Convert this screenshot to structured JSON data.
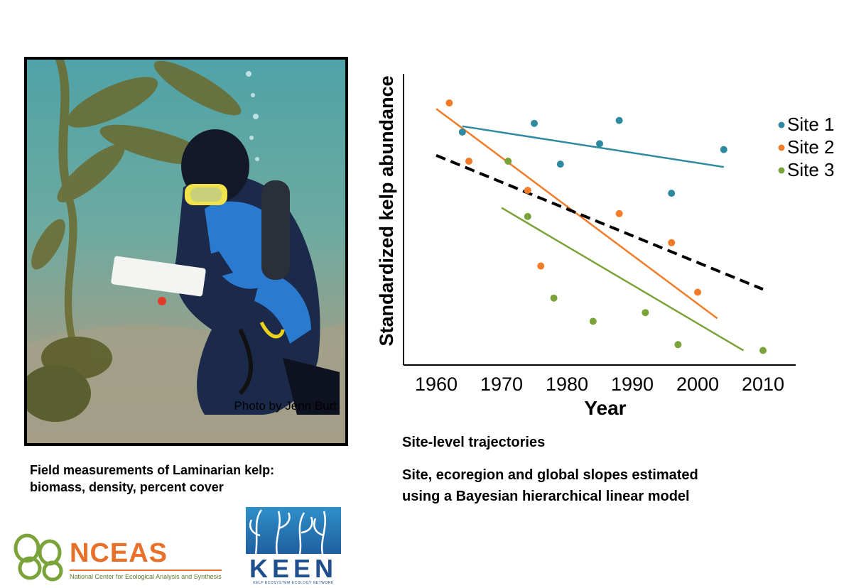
{
  "photo": {
    "credit": "Photo by Jenn Burt",
    "caption_line1": "Field measurements of Laminarian kelp:",
    "caption_line2": "biomass, density, percent cover"
  },
  "chart_captions": {
    "line1": "Site-level trajectories",
    "line2a": "Site, ecoregion and global slopes estimated",
    "line2b": "using a Bayesian hierarchical linear model"
  },
  "logos": {
    "nceas_name": "NCEAS",
    "nceas_sub": "National Center for Ecological Analysis and Synthesis",
    "keen_name": "KEEN",
    "keen_sub": "KELP ECOSYSTEM ECOLOGY NETWORK"
  },
  "chart_data": {
    "type": "scatter",
    "title": "",
    "xlabel": "Year",
    "ylabel": "Standardized kelp abundance",
    "xlim": [
      1955,
      2015
    ],
    "ylim": [
      0,
      100
    ],
    "x_ticks": [
      1960,
      1970,
      1980,
      1990,
      2000,
      2010
    ],
    "legend_position": "right",
    "grid": false,
    "series": [
      {
        "name": "Site 1",
        "color": "#2e8aa0",
        "points": [
          [
            1964,
            80
          ],
          [
            1975,
            83
          ],
          [
            1985,
            76
          ],
          [
            1988,
            84
          ],
          [
            1979,
            69
          ],
          [
            1996,
            59
          ],
          [
            2004,
            74
          ]
        ],
        "trend": [
          [
            1964,
            82
          ],
          [
            2004,
            68
          ]
        ]
      },
      {
        "name": "Site 2",
        "color": "#f07c28",
        "points": [
          [
            1962,
            90
          ],
          [
            1965,
            70
          ],
          [
            1974,
            60
          ],
          [
            1976,
            34
          ],
          [
            1988,
            52
          ],
          [
            1996,
            42
          ],
          [
            2000,
            25
          ]
        ],
        "trend": [
          [
            1960,
            88
          ],
          [
            2003,
            16
          ]
        ]
      },
      {
        "name": "Site 3",
        "color": "#7aa33a",
        "points": [
          [
            1971,
            70
          ],
          [
            1974,
            51
          ],
          [
            1978,
            23
          ],
          [
            1984,
            15
          ],
          [
            1992,
            18
          ],
          [
            1997,
            7
          ],
          [
            2010,
            5
          ]
        ],
        "trend": [
          [
            1970,
            54
          ],
          [
            2007,
            5
          ]
        ]
      }
    ],
    "global_trend": {
      "color": "#000000",
      "style": "dashed",
      "line": [
        [
          1960,
          72
        ],
        [
          2010,
          26
        ]
      ]
    }
  }
}
